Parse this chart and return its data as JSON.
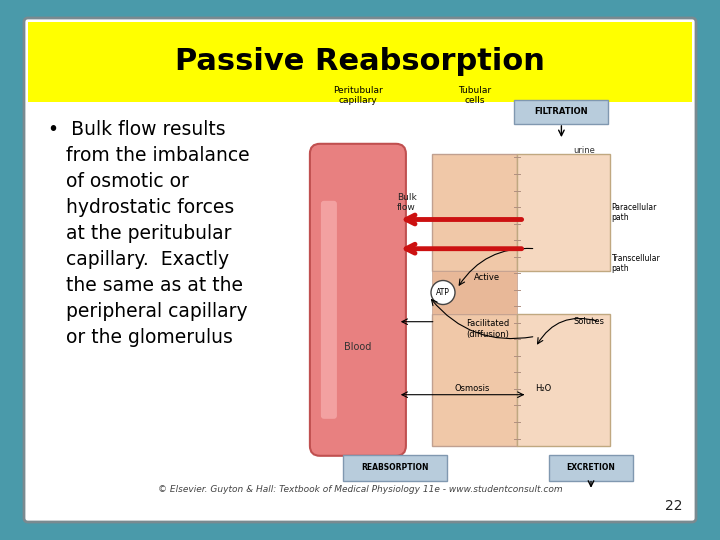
{
  "title": "Passive Reabsorption",
  "title_bg": "#FFFF00",
  "title_color": "#000000",
  "title_fontsize": 22,
  "slide_bg": "#FFFFFF",
  "outer_bg": "#4a9aaa",
  "border_color": "#6a7a80",
  "bullet_lines": [
    "•  Bulk flow results",
    "   from the imbalance",
    "   of osmotic or",
    "   hydrostatic forces",
    "   at the peritubular",
    "   capillary.  Exactly",
    "   the same as at the",
    "   peripheral capillary",
    "   or the glomerulus"
  ],
  "bullet_fontsize": 13.5,
  "bullet_color": "#000000",
  "caption_text": "© Elsevier. Guyton & Hall: Textbook of Medical Physiology 11e - www.studentconsult.com",
  "caption_fontsize": 6.5,
  "page_number": "22",
  "page_number_fontsize": 10
}
